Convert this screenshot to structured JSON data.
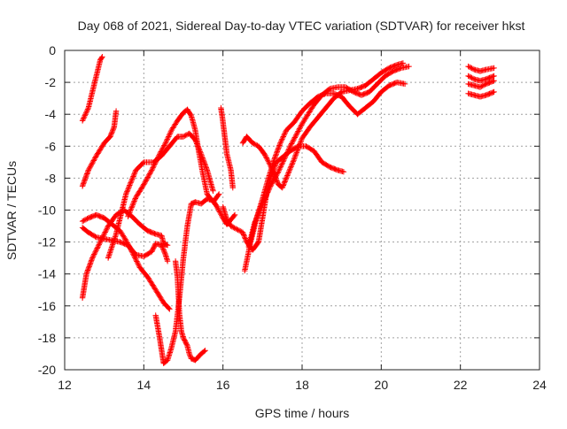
{
  "chart_data": {
    "type": "scatter",
    "title": "Day 068 of 2021, Sidereal Day-to-day VTEC variation (SDTVAR) for receiver hkst",
    "xlabel": "GPS time / hours",
    "ylabel": "SDTVAR / TECUs",
    "xlim": [
      12,
      24
    ],
    "ylim": [
      -20,
      0
    ],
    "xticks": [
      12,
      14,
      16,
      18,
      20,
      22,
      24
    ],
    "yticks": [
      0,
      -2,
      -4,
      -6,
      -8,
      -10,
      -12,
      -14,
      -16,
      -18,
      -20
    ],
    "xtick_labels": [
      "12",
      "14",
      "16",
      "18",
      "20",
      "22",
      "24"
    ],
    "ytick_labels": [
      "0",
      "-2",
      "-4",
      "-6",
      "-8",
      "-10",
      "-12",
      "-14",
      "-16",
      "-18",
      "-20"
    ],
    "grid": true,
    "marker": "+",
    "color": "#ff0000",
    "series": [
      {
        "values": [
          [
            12.45,
            -4.4
          ],
          [
            12.6,
            -3.6
          ],
          [
            12.7,
            -2.6
          ],
          [
            12.8,
            -1.6
          ],
          [
            12.9,
            -0.6
          ],
          [
            12.95,
            -0.4
          ]
        ]
      },
      {
        "values": [
          [
            12.45,
            -8.5
          ],
          [
            12.6,
            -7.5
          ],
          [
            12.8,
            -6.6
          ],
          [
            13.0,
            -5.8
          ],
          [
            13.15,
            -5.4
          ],
          [
            13.25,
            -4.8
          ],
          [
            13.3,
            -3.8
          ]
        ]
      },
      {
        "values": [
          [
            12.45,
            -15.5
          ],
          [
            12.55,
            -14.0
          ],
          [
            12.7,
            -13.0
          ],
          [
            12.9,
            -12.0
          ],
          [
            13.1,
            -11.0
          ],
          [
            13.3,
            -10.3
          ],
          [
            13.5,
            -10.0
          ],
          [
            13.7,
            -10.4
          ],
          [
            13.9,
            -10.9
          ],
          [
            14.1,
            -11.3
          ],
          [
            14.3,
            -11.5
          ],
          [
            14.45,
            -11.6
          ],
          [
            14.5,
            -12.1
          ],
          [
            14.6,
            -12.2
          ]
        ]
      },
      {
        "values": [
          [
            12.45,
            -10.7
          ],
          [
            12.6,
            -10.5
          ],
          [
            12.8,
            -10.3
          ],
          [
            13.0,
            -10.5
          ],
          [
            13.2,
            -10.9
          ],
          [
            13.4,
            -11.3
          ],
          [
            13.55,
            -11.9
          ],
          [
            13.7,
            -12.6
          ],
          [
            13.9,
            -13.6
          ],
          [
            14.1,
            -14.2
          ],
          [
            14.3,
            -15.0
          ],
          [
            14.5,
            -15.8
          ],
          [
            14.65,
            -16.2
          ]
        ]
      },
      {
        "values": [
          [
            12.45,
            -11.1
          ],
          [
            12.6,
            -11.4
          ],
          [
            12.8,
            -11.7
          ],
          [
            13.0,
            -11.8
          ],
          [
            13.2,
            -11.9
          ],
          [
            13.4,
            -12.0
          ],
          [
            13.6,
            -12.2
          ],
          [
            13.8,
            -12.8
          ],
          [
            14.0,
            -12.9
          ],
          [
            14.2,
            -12.6
          ],
          [
            14.3,
            -12.1
          ],
          [
            14.45,
            -12.2
          ],
          [
            14.55,
            -12.8
          ],
          [
            14.6,
            -13.2
          ]
        ]
      },
      {
        "values": [
          [
            13.1,
            -13.0
          ],
          [
            13.3,
            -11.5
          ],
          [
            13.55,
            -9.0
          ],
          [
            13.8,
            -7.5
          ],
          [
            14.0,
            -7.0
          ],
          [
            14.25,
            -7.0
          ],
          [
            14.45,
            -6.6
          ],
          [
            14.65,
            -6.0
          ],
          [
            14.85,
            -5.4
          ],
          [
            15.0,
            -5.4
          ],
          [
            15.15,
            -5.2
          ],
          [
            15.3,
            -5.6
          ],
          [
            15.45,
            -6.5
          ],
          [
            15.6,
            -7.5
          ],
          [
            15.75,
            -8.8
          ]
        ]
      },
      {
        "values": [
          [
            13.6,
            -10.4
          ],
          [
            13.8,
            -9.2
          ],
          [
            14.0,
            -8.4
          ],
          [
            14.2,
            -7.5
          ],
          [
            14.4,
            -6.5
          ],
          [
            14.55,
            -5.8
          ],
          [
            14.7,
            -5.0
          ],
          [
            14.85,
            -4.4
          ],
          [
            15.0,
            -3.9
          ],
          [
            15.1,
            -3.7
          ],
          [
            15.2,
            -4.1
          ],
          [
            15.3,
            -5.0
          ],
          [
            15.4,
            -6.5
          ],
          [
            15.5,
            -7.8
          ],
          [
            15.6,
            -9.0
          ],
          [
            15.75,
            -9.5
          ],
          [
            15.9,
            -9.0
          ]
        ]
      },
      {
        "values": [
          [
            14.3,
            -16.6
          ],
          [
            14.4,
            -18.0
          ],
          [
            14.45,
            -18.8
          ],
          [
            14.5,
            -19.6
          ],
          [
            14.6,
            -19.4
          ],
          [
            14.7,
            -18.6
          ],
          [
            14.8,
            -17.6
          ],
          [
            14.9,
            -15.5
          ],
          [
            15.0,
            -13.0
          ],
          [
            15.1,
            -11.0
          ],
          [
            15.2,
            -9.6
          ],
          [
            15.3,
            -9.5
          ],
          [
            15.45,
            -9.6
          ],
          [
            15.6,
            -9.3
          ],
          [
            15.75,
            -9.4
          ],
          [
            15.85,
            -9.8
          ],
          [
            16.0,
            -10.5
          ],
          [
            16.1,
            -10.9
          ],
          [
            16.2,
            -10.6
          ],
          [
            16.3,
            -10.3
          ]
        ]
      },
      {
        "values": [
          [
            14.8,
            -13.2
          ],
          [
            14.85,
            -14.2
          ],
          [
            14.9,
            -16.5
          ],
          [
            14.95,
            -17.6
          ],
          [
            15.0,
            -18.0
          ],
          [
            15.1,
            -18.5
          ],
          [
            15.15,
            -19.0
          ],
          [
            15.2,
            -19.3
          ],
          [
            15.3,
            -19.4
          ],
          [
            15.45,
            -19.0
          ],
          [
            15.55,
            -18.8
          ]
        ]
      },
      {
        "values": [
          [
            15.95,
            -3.6
          ],
          [
            16.0,
            -4.5
          ],
          [
            16.05,
            -5.5
          ],
          [
            16.1,
            -6.5
          ],
          [
            16.2,
            -7.5
          ],
          [
            16.25,
            -8.6
          ]
        ]
      },
      {
        "values": [
          [
            16.0,
            -9.8
          ],
          [
            16.1,
            -10.6
          ],
          [
            16.2,
            -11.0
          ],
          [
            16.35,
            -11.2
          ],
          [
            16.5,
            -11.4
          ],
          [
            16.6,
            -12.0
          ],
          [
            16.75,
            -12.5
          ],
          [
            16.9,
            -12.0
          ],
          [
            17.0,
            -10.5
          ],
          [
            17.1,
            -9.0
          ],
          [
            17.2,
            -8.0
          ],
          [
            17.35,
            -7.0
          ],
          [
            17.5,
            -6.7
          ],
          [
            17.7,
            -6.3
          ],
          [
            17.9,
            -6.0
          ],
          [
            18.1,
            -6.0
          ],
          [
            18.3,
            -6.3
          ],
          [
            18.5,
            -7.0
          ],
          [
            18.7,
            -7.3
          ],
          [
            18.9,
            -7.5
          ],
          [
            19.05,
            -7.6
          ]
        ]
      },
      {
        "values": [
          [
            16.55,
            -13.8
          ],
          [
            16.7,
            -12.0
          ],
          [
            16.85,
            -10.5
          ],
          [
            17.0,
            -9.3
          ],
          [
            17.15,
            -8.0
          ],
          [
            17.3,
            -6.8
          ],
          [
            17.45,
            -5.8
          ],
          [
            17.6,
            -5.0
          ],
          [
            17.8,
            -4.5
          ],
          [
            18.0,
            -3.8
          ],
          [
            18.2,
            -3.3
          ],
          [
            18.4,
            -2.9
          ],
          [
            18.6,
            -2.7
          ],
          [
            18.8,
            -2.7
          ],
          [
            19.0,
            -2.9
          ],
          [
            19.2,
            -3.5
          ],
          [
            19.4,
            -4.0
          ],
          [
            19.6,
            -3.6
          ],
          [
            19.8,
            -3.2
          ],
          [
            20.0,
            -2.6
          ],
          [
            20.2,
            -2.2
          ],
          [
            20.4,
            -2.0
          ],
          [
            20.6,
            -2.1
          ]
        ]
      },
      {
        "values": [
          [
            16.5,
            -5.8
          ],
          [
            16.6,
            -5.4
          ],
          [
            16.75,
            -5.8
          ],
          [
            16.9,
            -6.0
          ],
          [
            17.05,
            -6.5
          ],
          [
            17.2,
            -7.2
          ],
          [
            17.3,
            -7.8
          ],
          [
            17.4,
            -8.4
          ],
          [
            17.5,
            -8.6
          ],
          [
            17.6,
            -8.0
          ],
          [
            17.8,
            -6.8
          ],
          [
            18.0,
            -5.5
          ],
          [
            18.2,
            -4.8
          ],
          [
            18.4,
            -4.2
          ],
          [
            18.6,
            -3.6
          ],
          [
            18.8,
            -3.0
          ],
          [
            19.0,
            -2.6
          ],
          [
            19.2,
            -2.5
          ],
          [
            19.4,
            -2.4
          ],
          [
            19.6,
            -2.2
          ],
          [
            19.8,
            -1.8
          ],
          [
            20.0,
            -1.4
          ],
          [
            20.2,
            -1.1
          ],
          [
            20.4,
            -0.9
          ],
          [
            20.55,
            -0.8
          ]
        ]
      },
      {
        "values": [
          [
            16.65,
            -12.3
          ],
          [
            16.8,
            -10.8
          ],
          [
            17.0,
            -9.6
          ],
          [
            17.2,
            -8.5
          ],
          [
            17.4,
            -7.6
          ],
          [
            17.55,
            -6.8
          ],
          [
            17.7,
            -6.0
          ],
          [
            17.85,
            -5.3
          ],
          [
            18.0,
            -4.6
          ],
          [
            18.15,
            -4.0
          ],
          [
            18.3,
            -3.4
          ],
          [
            18.5,
            -2.8
          ],
          [
            18.7,
            -2.4
          ],
          [
            18.9,
            -2.3
          ],
          [
            19.1,
            -2.3
          ],
          [
            19.3,
            -2.6
          ],
          [
            19.5,
            -2.8
          ],
          [
            19.7,
            -2.6
          ],
          [
            19.9,
            -2.1
          ],
          [
            20.1,
            -1.6
          ],
          [
            20.3,
            -1.3
          ],
          [
            20.5,
            -1.1
          ],
          [
            20.7,
            -1.0
          ]
        ]
      },
      {
        "values": [
          [
            22.2,
            -1.0
          ],
          [
            22.35,
            -1.2
          ],
          [
            22.5,
            -1.3
          ],
          [
            22.65,
            -1.2
          ],
          [
            22.85,
            -1.1
          ]
        ]
      },
      {
        "values": [
          [
            22.2,
            -1.6
          ],
          [
            22.35,
            -1.8
          ],
          [
            22.5,
            -1.9
          ],
          [
            22.65,
            -1.8
          ],
          [
            22.85,
            -1.6
          ]
        ]
      },
      {
        "values": [
          [
            22.2,
            -2.1
          ],
          [
            22.35,
            -2.2
          ],
          [
            22.5,
            -2.3
          ],
          [
            22.65,
            -2.1
          ],
          [
            22.85,
            -1.9
          ]
        ]
      },
      {
        "values": [
          [
            22.2,
            -2.7
          ],
          [
            22.35,
            -2.8
          ],
          [
            22.5,
            -2.9
          ],
          [
            22.65,
            -2.8
          ],
          [
            22.85,
            -2.6
          ]
        ]
      }
    ]
  }
}
